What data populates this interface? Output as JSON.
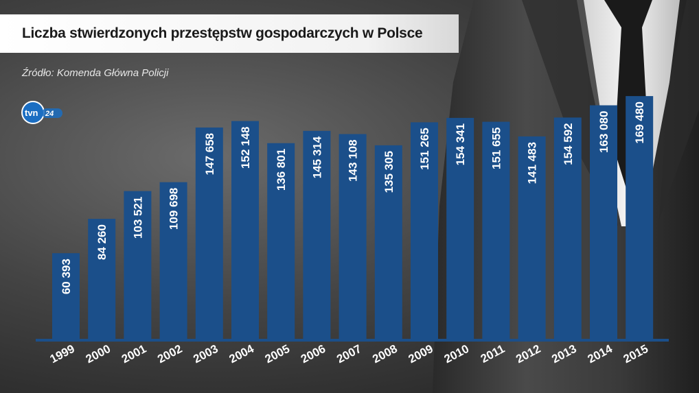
{
  "header": {
    "title": "Liczba stwierdzonych przestępstw gospodarczych w Polsce",
    "source": "Źródło: Komenda Główna Policji",
    "logo_text": "tvn24"
  },
  "colors": {
    "bar": "#1b4f8a",
    "baseline": "#1b4f8a",
    "text": "#ffffff"
  },
  "chart_data": {
    "type": "bar",
    "categories": [
      "1999",
      "2000",
      "2001",
      "2002",
      "2003",
      "2004",
      "2005",
      "2006",
      "2007",
      "2008",
      "2009",
      "2010",
      "2011",
      "2012",
      "2013",
      "2014",
      "2015"
    ],
    "values": [
      60393,
      84260,
      103521,
      109698,
      147658,
      152148,
      136801,
      145314,
      143108,
      135305,
      151265,
      154341,
      151655,
      141483,
      154592,
      163080,
      169480
    ],
    "value_labels": [
      "60 393",
      "84 260",
      "103 521",
      "109 698",
      "147 658",
      "152 148",
      "136 801",
      "145 314",
      "143 108",
      "135 305",
      "151 265",
      "154 341",
      "151 655",
      "141 483",
      "154 592",
      "163 080",
      "169 480"
    ],
    "title": "Liczba stwierdzonych przestępstw gospodarczych w Polsce",
    "xlabel": "",
    "ylabel": "",
    "ylim": [
      0,
      170000
    ],
    "grid": false,
    "legend": "none"
  }
}
